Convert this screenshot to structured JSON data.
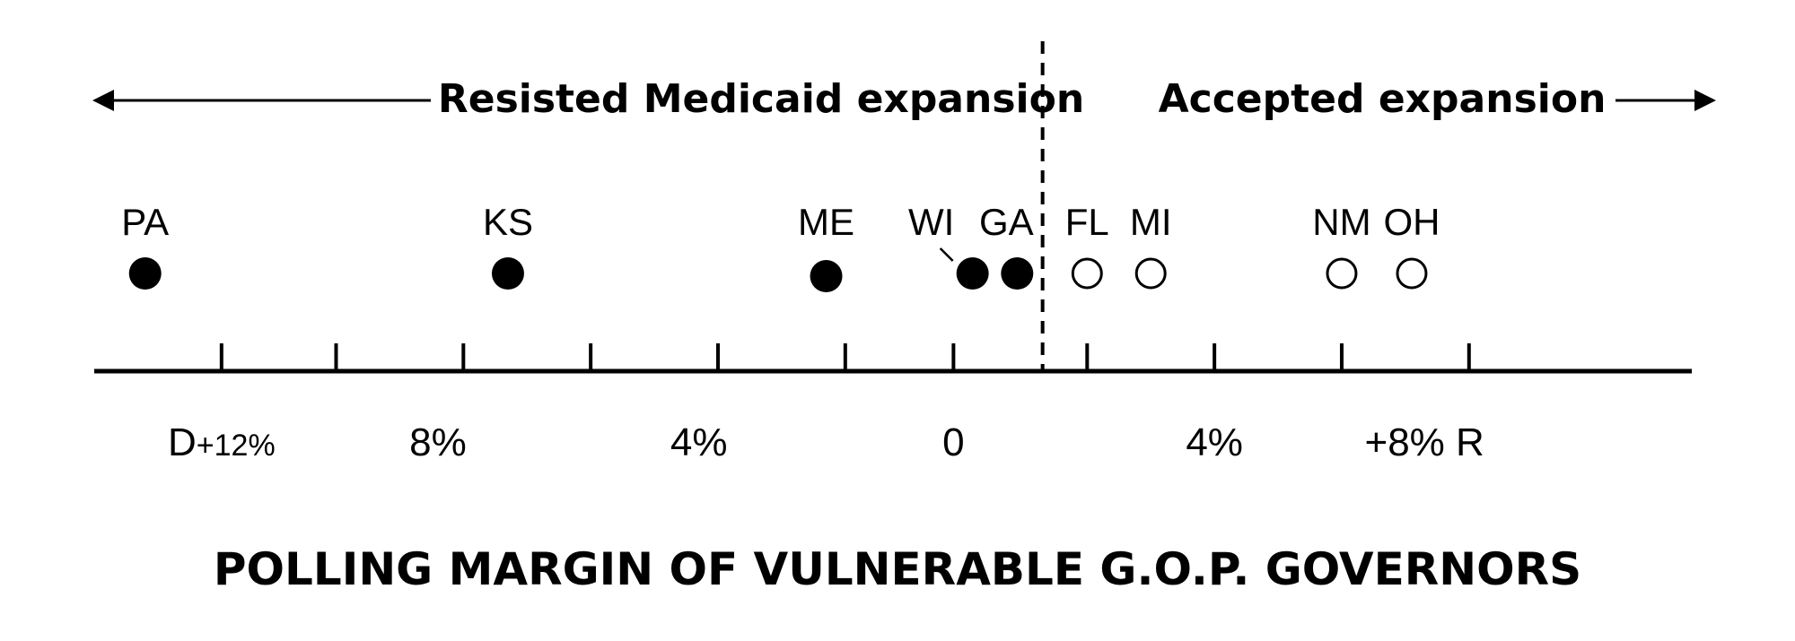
{
  "chart_data": {
    "type": "scatter",
    "title": "POLLING MARGIN OF VULNERABLE G.O.P. GOVERNORS",
    "header_left": "Resisted Medicaid expansion",
    "header_right": "Accepted expansion",
    "xlim": [
      -13.5,
      11.6
    ],
    "threshold": 1.4,
    "ticks": [
      -11.5,
      -9.7,
      -7.7,
      -5.7,
      -3.7,
      -1.7,
      0,
      2.1,
      4.1,
      6.1,
      8.1
    ],
    "tick_labels": [
      {
        "x": -11.5,
        "prefix": "D",
        "text": "+12%"
      },
      {
        "x": -8.1,
        "prefix": "",
        "text": "8%"
      },
      {
        "x": -4.0,
        "prefix": "",
        "text": "4%"
      },
      {
        "x": 0,
        "prefix": "",
        "text": "0"
      },
      {
        "x": 4.1,
        "prefix": "",
        "text": "4%"
      },
      {
        "x": 7.4,
        "prefix": "",
        "text": "+8% R"
      }
    ],
    "legend": {
      "filled": "Resisted Medicaid expansion",
      "open": "Accepted expansion"
    },
    "points": [
      {
        "state": "PA",
        "x": -12.7,
        "expansion": "resisted"
      },
      {
        "state": "KS",
        "x": -7.0,
        "expansion": "resisted"
      },
      {
        "state": "ME",
        "x": -2.0,
        "expansion": "resisted"
      },
      {
        "state": "WI",
        "x": 0.3,
        "expansion": "resisted"
      },
      {
        "state": "GA",
        "x": 1.0,
        "expansion": "resisted"
      },
      {
        "state": "FL",
        "x": 2.1,
        "expansion": "accepted"
      },
      {
        "state": "MI",
        "x": 3.1,
        "expansion": "accepted"
      },
      {
        "state": "NM",
        "x": 6.1,
        "expansion": "accepted"
      },
      {
        "state": "OH",
        "x": 7.2,
        "expansion": "accepted"
      }
    ],
    "grid": false,
    "colors": {
      "ink": "#000000",
      "background": "#ffffff"
    }
  }
}
